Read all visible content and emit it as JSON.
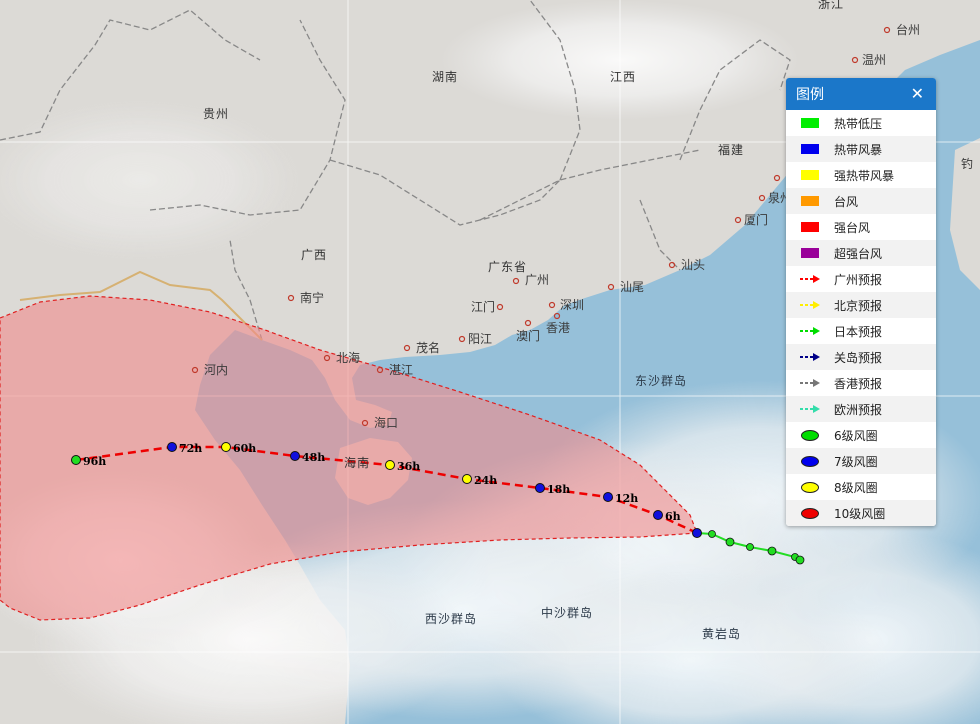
{
  "map": {
    "provinces": [
      "贵州",
      "湖南",
      "江西",
      "浙江",
      "广西",
      "广东省",
      "福建"
    ],
    "cities": [
      "台州",
      "温州",
      "南宁",
      "广州",
      "汕尾",
      "汕头",
      "江门",
      "深圳",
      "香港",
      "澳门",
      "阳江",
      "茂名",
      "北海",
      "湛江",
      "河内",
      "海口",
      "厦门",
      "泉州",
      "钓"
    ],
    "regions": [
      "海南"
    ],
    "seas": [
      "东沙群岛",
      "西沙群岛",
      "中沙群岛",
      "黄岩岛"
    ],
    "track_labels": [
      "6h",
      "12h",
      "18h",
      "24h",
      "36h",
      "48h",
      "60h",
      "72h",
      "96h"
    ]
  },
  "legend": {
    "title": "图例",
    "close_icon": "close-icon",
    "items": [
      {
        "label": "热带低压",
        "kind": "box",
        "color": "#00ee00"
      },
      {
        "label": "热带风暴",
        "kind": "box",
        "color": "#0000ee"
      },
      {
        "label": "强热带风暴",
        "kind": "box",
        "color": "#ffff00"
      },
      {
        "label": "台风",
        "kind": "box",
        "color": "#ff9900"
      },
      {
        "label": "强台风",
        "kind": "box",
        "color": "#ff0000"
      },
      {
        "label": "超强台风",
        "kind": "box",
        "color": "#990099"
      },
      {
        "label": "广州预报",
        "kind": "arrow",
        "color": "#ff0000"
      },
      {
        "label": "北京预报",
        "kind": "arrow",
        "color": "#ffee00"
      },
      {
        "label": "日本预报",
        "kind": "arrow",
        "color": "#00dd00"
      },
      {
        "label": "关岛预报",
        "kind": "arrow",
        "color": "#000088"
      },
      {
        "label": "香港预报",
        "kind": "arrow",
        "color": "#777777"
      },
      {
        "label": "欧洲预报",
        "kind": "arrow",
        "color": "#33ddaa"
      },
      {
        "label": "6级风圈",
        "kind": "circle",
        "color": "#00dd00"
      },
      {
        "label": "7级风圈",
        "kind": "circle",
        "color": "#0000ee"
      },
      {
        "label": "8级风圈",
        "kind": "circle",
        "color": "#ffff00"
      },
      {
        "label": "10级风圈",
        "kind": "circle",
        "color": "#ee0000"
      }
    ]
  }
}
